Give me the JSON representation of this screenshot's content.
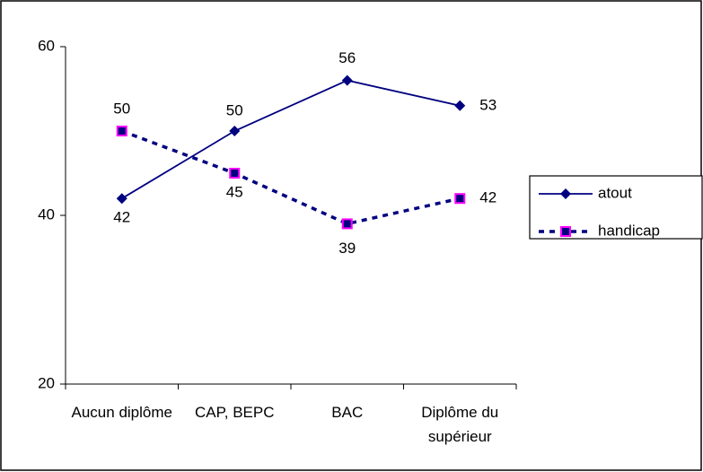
{
  "chart_data": {
    "type": "line",
    "categories": [
      "Aucun diplôme",
      "CAP, BEPC",
      "BAC",
      "Diplôme du supérieur"
    ],
    "series": [
      {
        "name": "atout",
        "color": "#000080",
        "values": [
          42,
          50,
          56,
          53
        ]
      },
      {
        "name": "handicap",
        "color": "#000080",
        "values": [
          50,
          45,
          39,
          42
        ]
      }
    ],
    "ylim": [
      20,
      60
    ],
    "yticks": [
      20,
      40,
      60
    ],
    "grid": false,
    "legend": "right"
  }
}
